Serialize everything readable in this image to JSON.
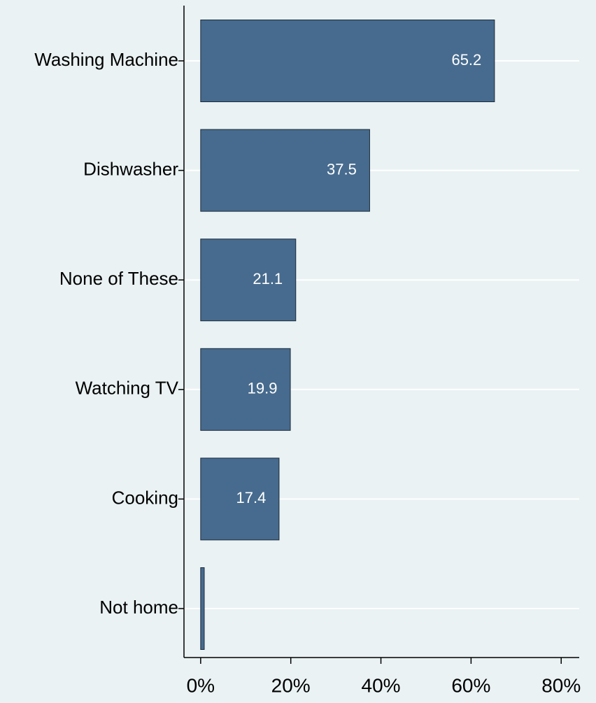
{
  "chart_data": {
    "type": "hbar",
    "categories": [
      "Washing Machine",
      "Dishwasher",
      "None of These",
      "Watching TV",
      "Cooking",
      "Not home"
    ],
    "values": [
      65.2,
      37.5,
      21.1,
      19.9,
      17.4,
      0.8
    ],
    "value_labels": [
      "65.2",
      "37.5",
      "21.1",
      "19.9",
      "17.4",
      null
    ],
    "color": "#476b8e",
    "xlim": [
      -3.7,
      84
    ],
    "xticks": [
      {
        "value": 0,
        "label": "0%"
      },
      {
        "value": 20,
        "label": "20%"
      },
      {
        "value": 40,
        "label": "40%"
      },
      {
        "value": 60,
        "label": "60%"
      },
      {
        "value": 80,
        "label": "80%"
      }
    ],
    "grid": true
  }
}
